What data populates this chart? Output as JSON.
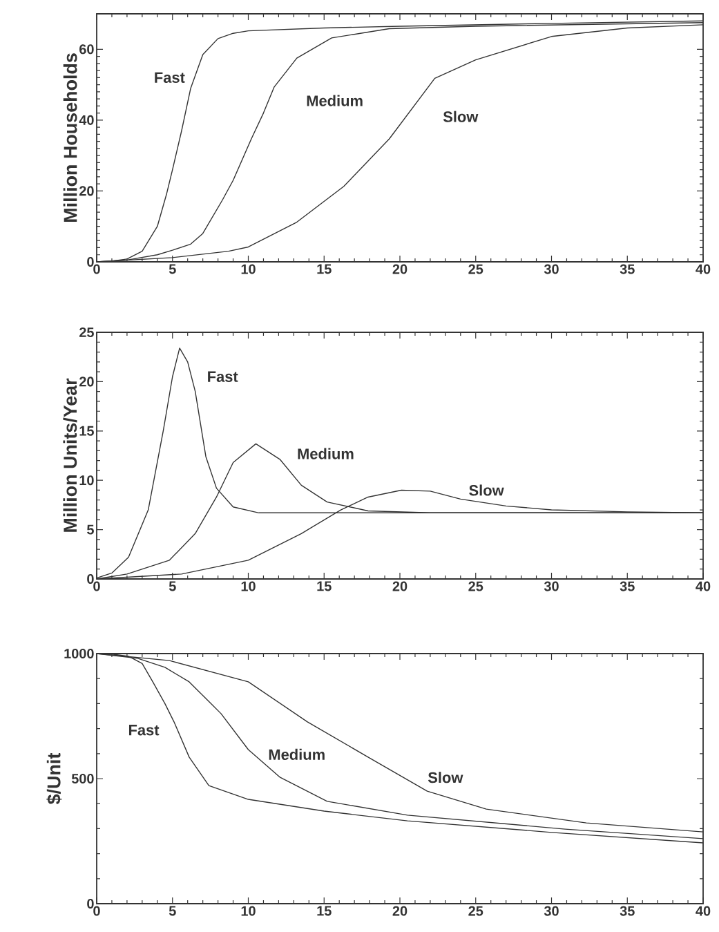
{
  "chart_data": [
    {
      "type": "line",
      "ylabel": "Million Households",
      "xlim": [
        0,
        40
      ],
      "xticks": [
        0,
        5,
        10,
        15,
        20,
        25,
        30,
        35,
        40
      ],
      "ylim": [
        0,
        70
      ],
      "yticks": [
        0,
        20,
        40,
        60
      ],
      "series": [
        {
          "name": "Fast",
          "color": "#333333",
          "x": [
            0,
            1,
            2,
            3,
            4,
            4.6,
            5,
            5.6,
            6.2,
            7,
            8,
            9,
            10,
            15,
            20,
            30,
            40
          ],
          "values": [
            0,
            0.2,
            0.8,
            3,
            10,
            19,
            26,
            37,
            49,
            58.5,
            63,
            64.5,
            65.2,
            66,
            66.5,
            67.3,
            68
          ]
        },
        {
          "name": "Medium",
          "color": "#333333",
          "x": [
            0,
            2,
            4,
            5,
            6.2,
            7,
            8.3,
            9,
            10.2,
            11,
            11.7,
            13.2,
            15.5,
            19.3,
            25,
            40
          ],
          "values": [
            0,
            0.5,
            2,
            3.3,
            5,
            8,
            17.5,
            23,
            34.7,
            42,
            49.3,
            57.5,
            63.2,
            65.8,
            66.5,
            67.5
          ]
        },
        {
          "name": "Slow",
          "color": "#333333",
          "x": [
            0,
            5,
            8.7,
            10,
            13.2,
            16.3,
            19.3,
            22.3,
            25,
            30,
            35,
            40
          ],
          "values": [
            0,
            1.2,
            3,
            4.2,
            11.2,
            21.3,
            34.7,
            51.8,
            57,
            63.6,
            66,
            66.9
          ]
        }
      ]
    },
    {
      "type": "line",
      "ylabel": "Million Units/Year",
      "xlim": [
        0,
        40
      ],
      "xticks": [
        0,
        5,
        10,
        15,
        20,
        25,
        30,
        35,
        40
      ],
      "ylim": [
        0,
        25
      ],
      "yticks": [
        0,
        5,
        10,
        15,
        20,
        25
      ],
      "series": [
        {
          "name": "Fast",
          "color": "#333333",
          "x": [
            0,
            1,
            2.1,
            3.4,
            4.4,
            5,
            5.47,
            6,
            6.5,
            7.2,
            7.9,
            9,
            10.7,
            40
          ],
          "values": [
            0.1,
            0.6,
            2.2,
            7,
            15.1,
            20.5,
            23.4,
            22,
            19,
            12.4,
            9.2,
            7.3,
            6.7,
            6.7
          ]
        },
        {
          "name": "Medium",
          "color": "#333333",
          "x": [
            0,
            2,
            4.8,
            6.5,
            7.9,
            9,
            10.5,
            12.1,
            13.5,
            15.2,
            17.9,
            22,
            40
          ],
          "values": [
            0,
            0.5,
            1.9,
            4.6,
            8.3,
            11.8,
            13.7,
            12.1,
            9.5,
            7.8,
            6.9,
            6.7,
            6.7
          ]
        },
        {
          "name": "Slow",
          "color": "#333333",
          "x": [
            0,
            5.6,
            10,
            13.5,
            16.1,
            17.9,
            20.1,
            22,
            24,
            27,
            30,
            35,
            40
          ],
          "values": [
            0,
            0.5,
            1.9,
            4.6,
            7,
            8.3,
            9,
            8.9,
            8.1,
            7.4,
            7,
            6.8,
            6.7
          ]
        }
      ]
    },
    {
      "type": "line",
      "ylabel": "$/Unit",
      "xlim": [
        0,
        40
      ],
      "xticks": [
        0,
        5,
        10,
        15,
        20,
        25,
        30,
        35,
        40
      ],
      "ylim": [
        0,
        1000
      ],
      "yticks": [
        0,
        500,
        1000
      ],
      "series": [
        {
          "name": "Fast",
          "color": "#333333",
          "x": [
            0,
            1,
            2.1,
            3,
            3.7,
            4.5,
            5.1,
            6.1,
            7.4,
            10,
            15,
            20.5,
            30,
            40
          ],
          "values": [
            1000,
            998,
            989,
            960,
            887,
            800,
            727,
            586,
            472,
            417,
            370,
            331,
            285,
            243
          ]
        },
        {
          "name": "Medium",
          "color": "#333333",
          "x": [
            0,
            2.7,
            4.5,
            6.1,
            8.2,
            10,
            12.1,
            15.2,
            20.5,
            30.9,
            40
          ],
          "values": [
            1000,
            981,
            945,
            887,
            760,
            616,
            505,
            409,
            354,
            298,
            260
          ]
        },
        {
          "name": "Slow",
          "color": "#333333",
          "x": [
            0,
            4.8,
            10,
            13.9,
            17.9,
            21.8,
            25.7,
            32.3,
            40
          ],
          "values": [
            1000,
            972,
            887,
            727,
            586,
            450,
            378,
            323,
            287
          ]
        }
      ]
    }
  ]
}
